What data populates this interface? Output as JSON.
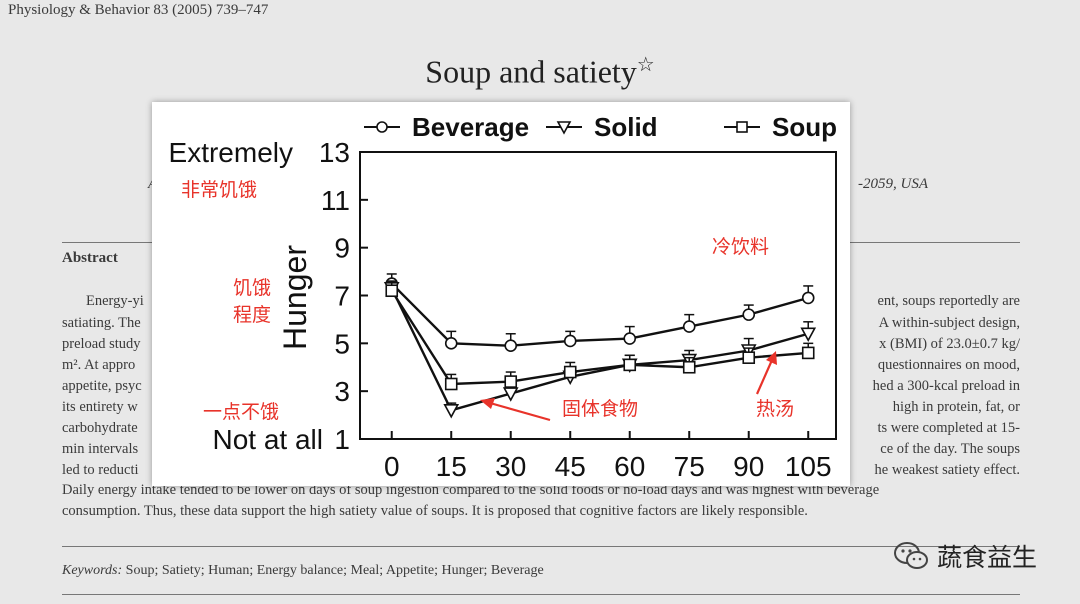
{
  "article": {
    "journal": "Physiology & Behavior 83 (2005) 739–747",
    "title": "Soup and satiety",
    "title_mark": "☆",
    "affiliation_left": "A",
    "affiliation_right": "-2059, USA",
    "abstract_heading": "Abstract",
    "abstract_left": [
      "Energy-yi",
      "satiating. The",
      "preload study",
      "m². At appro",
      "appetite, psyc",
      "its entirety w",
      "carbohydrate",
      "min intervals",
      "led to reducti"
    ],
    "abstract_right": [
      "ent, soups reportedly are",
      "A within-subject design,",
      "x (BMI) of 23.0±0.7 kg/",
      "questionnaires on mood,",
      "hed a 300-kcal preload in",
      "high in protein, fat, or",
      "ts were completed at 15-",
      "ce of the day. The soups",
      "he weakest satiety effect."
    ],
    "abstract_full_1": "Daily energy intake tended to be lower on days of soup ingestion compared to the solid foods or no-load days and was highest with beverage",
    "abstract_full_2": "consumption. Thus, these data support the high satiety value of soups. It is proposed that cognitive factors are likely responsible.",
    "keywords_label": "Keywords:",
    "keywords": "Soup; Satiety; Human; Energy balance; Meal; Appetite; Hunger; Beverage"
  },
  "chart_data": {
    "type": "line",
    "title": "",
    "xlabel": "",
    "ylabel": "Hunger",
    "x": [
      0,
      15,
      30,
      45,
      60,
      75,
      90,
      105
    ],
    "x_tick_labels": [
      "0",
      "15",
      "30",
      "45",
      "60",
      "75",
      "90",
      "105"
    ],
    "y_ticks": [
      1,
      3,
      5,
      7,
      9,
      11,
      13
    ],
    "y_tick_labels": [
      "1",
      "3",
      "5",
      "7",
      "9",
      "11",
      "13"
    ],
    "ylim": [
      1,
      13
    ],
    "xlim": [
      -8,
      112
    ],
    "y_anchor_top": "Extremely",
    "y_anchor_bottom": "Not at all",
    "legend_position": "top",
    "series": [
      {
        "name": "Beverage",
        "marker": "circle",
        "legend_label": "Beverage",
        "values": [
          7.5,
          5.0,
          4.9,
          5.1,
          5.2,
          5.7,
          6.2,
          6.9
        ],
        "errors": [
          0.4,
          0.5,
          0.5,
          0.4,
          0.5,
          0.5,
          0.4,
          0.5
        ]
      },
      {
        "name": "Solid",
        "marker": "triangle",
        "legend_label": "Solid",
        "values": [
          7.3,
          2.2,
          2.9,
          3.6,
          4.1,
          4.3,
          4.7,
          5.4
        ],
        "errors": [
          0.3,
          0.3,
          0.3,
          0.4,
          0.4,
          0.4,
          0.5,
          0.5
        ]
      },
      {
        "name": "Soup",
        "marker": "square",
        "legend_label": "Soup",
        "values": [
          7.2,
          3.3,
          3.4,
          3.8,
          4.1,
          4.0,
          4.4,
          4.6
        ],
        "errors": [
          0.4,
          0.4,
          0.4,
          0.4,
          0.4,
          0.4,
          0.4,
          0.4
        ]
      }
    ],
    "annotations": {
      "extremely_hungry": "非常饥饿",
      "hunger_degree_line1": "饥饿",
      "hunger_degree_line2": "程度",
      "not_hungry": "一点不饿",
      "cold_drink": "冷饮料",
      "solid_food": "固体食物",
      "hot_soup": "热汤"
    }
  },
  "watermark": {
    "text": "蔬食益生"
  },
  "colors": {
    "annotation": "#e8332a",
    "ink": "#111111"
  }
}
